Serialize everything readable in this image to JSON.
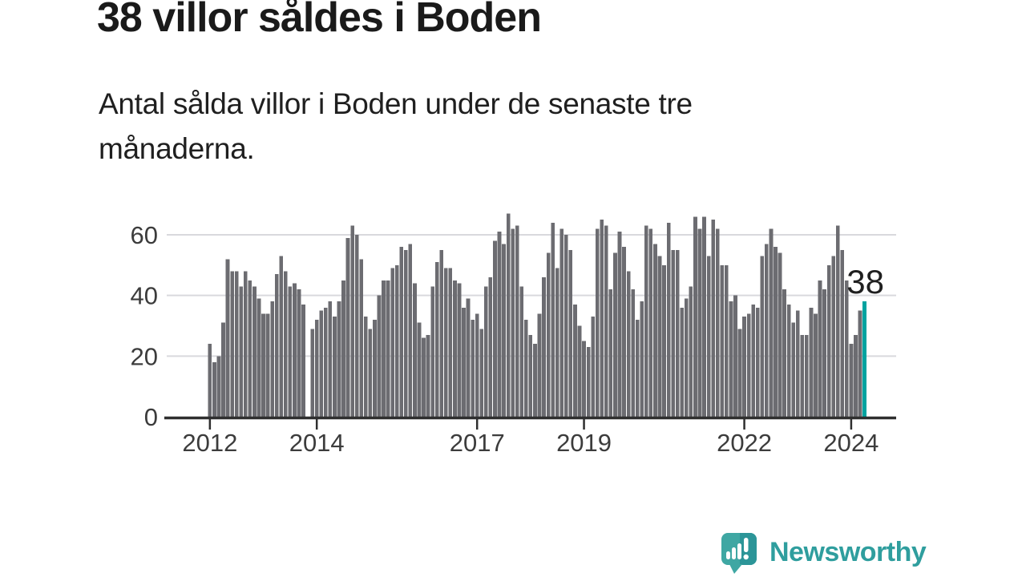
{
  "header": {
    "title": "38 villor såldes i Boden",
    "subtitle": "Antal sålda villor i Boden under de senaste tre månaderna."
  },
  "branding": {
    "label": "Newsworthy",
    "logo_icon": "speech-bubble-bar-chart-exclamation-icon"
  },
  "colors": {
    "bar_gray": "#6C6C71",
    "highlight_teal": "#00A3A0",
    "grid_line": "#D9D9DD",
    "axis_line": "#2F2F2F",
    "axis_text": "#3C3C3C",
    "annotation_text": "#1F1F1F",
    "logo_teal": "#2F9E9E"
  },
  "chart_data": {
    "type": "bar",
    "title": "38 villor såldes i Boden",
    "xlabel": "",
    "ylabel": "",
    "ylim": [
      0,
      70
    ],
    "y_ticks": [
      0,
      20,
      40,
      60
    ],
    "grid": "horizontal",
    "frequency": "monthly",
    "x_ticks": [
      {
        "label": "2012",
        "month_index": 0
      },
      {
        "label": "2014",
        "month_index": 24
      },
      {
        "label": "2017",
        "month_index": 60
      },
      {
        "label": "2019",
        "month_index": 84
      },
      {
        "label": "2022",
        "month_index": 120
      },
      {
        "label": "2024",
        "month_index": 144
      }
    ],
    "highlight_last_bar": true,
    "last_value_label": "38",
    "values": [
      24,
      18,
      20,
      31,
      52,
      48,
      48,
      43,
      48,
      45,
      43,
      39,
      34,
      34,
      38,
      47,
      53,
      48,
      43,
      44,
      42,
      37,
      null,
      29,
      32,
      35,
      36,
      38,
      33,
      38,
      45,
      59,
      63,
      60,
      52,
      33,
      29,
      32,
      40,
      45,
      45,
      49,
      50,
      56,
      55,
      57,
      44,
      31,
      26,
      27,
      43,
      51,
      55,
      49,
      49,
      45,
      44,
      36,
      39,
      32,
      34,
      29,
      43,
      46,
      58,
      61,
      57,
      67,
      62,
      63,
      43,
      32,
      27,
      24,
      34,
      46,
      54,
      64,
      49,
      62,
      60,
      55,
      37,
      30,
      25,
      23,
      33,
      62,
      65,
      63,
      42,
      54,
      61,
      56,
      48,
      42,
      32,
      38,
      63,
      62,
      57,
      53,
      50,
      64,
      55,
      55,
      36,
      39,
      43,
      66,
      62,
      66,
      53,
      65,
      62,
      50,
      50,
      38,
      40,
      29,
      33,
      34,
      37,
      36,
      53,
      57,
      62,
      56,
      54,
      42,
      37,
      31,
      35,
      27,
      27,
      36,
      34,
      45,
      42,
      50,
      53,
      63,
      55,
      45,
      24,
      27,
      35,
      38
    ]
  }
}
